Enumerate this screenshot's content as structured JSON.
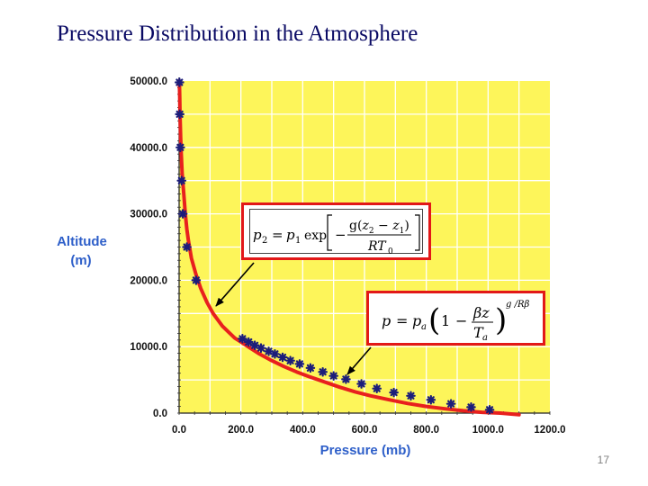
{
  "slide": {
    "title": "Pressure Distribution in the Atmosphere",
    "page_number": "17"
  },
  "formulas": {
    "exponential": "p₂ = p₁ exp[−g(z₂ − z₁) / RT₀]",
    "linear_lapse": "p = pₐ(1 − βz / Tₐ)^(g/Rβ)"
  },
  "colors": {
    "plot_background": "#fdf55a",
    "curve": "#e8201e",
    "markers": "#1c1d7a",
    "grid": "#ffffff",
    "axis_label": "#2e5fc9",
    "formula_border": "#e21818"
  },
  "chart_data": {
    "type": "scatter",
    "xlabel": "Pressure (mb)",
    "ylabel_lines": [
      "Altitude",
      "(m)"
    ],
    "xlim": [
      0,
      1200
    ],
    "ylim": [
      0,
      50000
    ],
    "x_tick_labels": [
      "0.0",
      "200.0",
      "400.0",
      "600.0",
      "800.0",
      "1000.0",
      "1200.0"
    ],
    "y_tick_labels": [
      "0.0",
      "10000.0",
      "20000.0",
      "30000.0",
      "40000.0",
      "50000.0"
    ],
    "x_ticks": [
      0,
      200,
      400,
      600,
      800,
      1000,
      1200
    ],
    "y_ticks": [
      0,
      10000,
      20000,
      30000,
      40000,
      50000
    ],
    "grid": true,
    "series": [
      {
        "kind": "curve",
        "x": [
          1,
          2,
          3,
          5,
          7,
          10,
          15,
          20,
          25,
          30,
          40,
          55,
          70,
          90,
          110,
          140,
          180,
          200,
          230,
          260,
          300,
          340,
          380,
          420,
          470,
          520,
          570,
          620,
          680,
          740,
          800,
          860,
          920,
          980,
          1040,
          1100
        ],
        "y": [
          50000,
          47500,
          45000,
          41500,
          39000,
          36000,
          33000,
          30000,
          27700,
          26000,
          23300,
          20800,
          18800,
          16700,
          15000,
          13100,
          11300,
          10700,
          9800,
          8900,
          7900,
          7000,
          6200,
          5500,
          4700,
          3900,
          3200,
          2600,
          2000,
          1450,
          1000,
          650,
          350,
          120,
          0,
          -250
        ]
      },
      {
        "kind": "markers",
        "x": [
          1,
          2,
          4,
          8,
          12,
          25,
          55,
          205,
          225,
          245,
          265,
          290,
          310,
          335,
          360,
          390,
          425,
          465,
          500,
          540,
          590,
          640,
          695,
          750,
          815,
          880,
          945,
          1005
        ],
        "y": [
          49800,
          45000,
          40000,
          35000,
          30000,
          25000,
          20000,
          11200,
          10700,
          10200,
          9800,
          9300,
          8900,
          8400,
          7900,
          7400,
          6800,
          6200,
          5600,
          5100,
          4400,
          3700,
          3100,
          2600,
          2000,
          1400,
          900,
          500
        ]
      }
    ]
  }
}
